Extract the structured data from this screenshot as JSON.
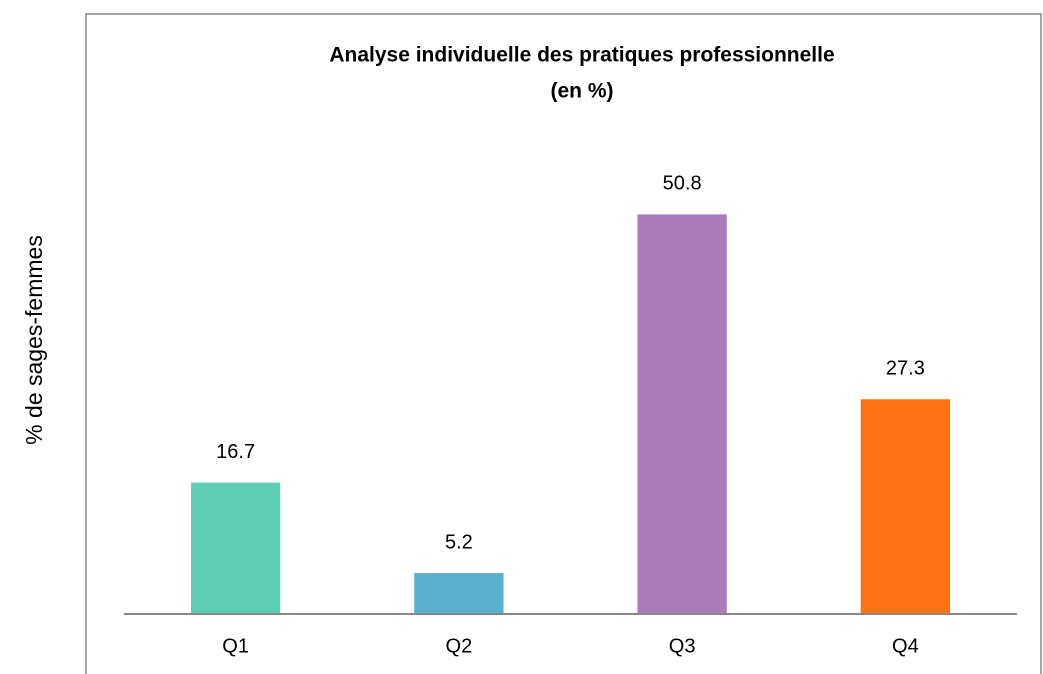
{
  "chart_data": {
    "type": "bar",
    "title": [
      "Analyse individuelle des pratiques professionnelle",
      "(en %)"
    ],
    "y_label": "% de sages-femmes",
    "categories": [
      "Q1",
      "Q2",
      "Q3",
      "Q4"
    ],
    "values": [
      16.7,
      5.2,
      50.8,
      27.3
    ],
    "colors": [
      "#5ccfb4",
      "#5aafce",
      "#a97bbd",
      "#ff7212"
    ],
    "ylim": [
      0,
      60
    ]
  }
}
